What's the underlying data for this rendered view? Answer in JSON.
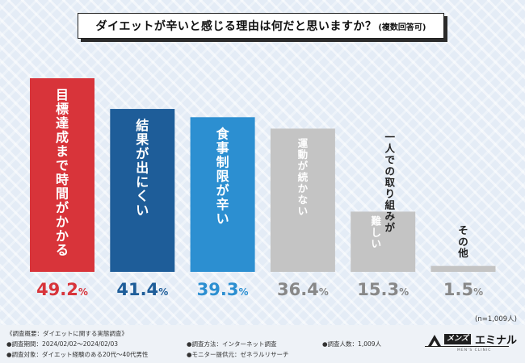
{
  "title": {
    "main": "ダイエットが辛いと感じる理由は何だと思いますか？",
    "note": "(複数回答可)"
  },
  "chart_data": {
    "type": "bar",
    "title": "ダイエットが辛いと感じる理由は何だと思いますか？(複数回答可)",
    "categories": [
      "目標達成まで時間がかかる",
      "結果が出にくい",
      "食事制限が辛い",
      "運動が続かない",
      "一人での取り組みが難しい",
      "その他"
    ],
    "values": [
      49.2,
      41.4,
      39.3,
      36.4,
      15.3,
      1.5
    ],
    "unit": "%",
    "ylim": [
      0,
      50
    ],
    "colors": [
      "#d8343a",
      "#1e5d99",
      "#2c8fd1",
      "#c4c4c4",
      "#c4c4c4",
      "#c4c4c4"
    ],
    "label_colors": [
      "#ffffff",
      "#ffffff",
      "#ffffff",
      "#ffffff",
      "#ffffff",
      "#222222"
    ],
    "value_colors": [
      "#d8343a",
      "#1e5d99",
      "#2c8fd1",
      "#888888",
      "#888888",
      "#888888"
    ],
    "bar_label_lines": [
      [
        "目標達成まで時間がかかる"
      ],
      [
        "結果が出にくい"
      ],
      [
        "食事制限が辛い"
      ],
      [
        "運動が続かない"
      ],
      [
        "一人での取り組みが",
        "難しい"
      ],
      [
        "その他"
      ]
    ],
    "legend": "none",
    "grid": false
  },
  "sample_note": "(n=1,009人)",
  "footer": {
    "overview": "《調査概要：ダイエットに関する実態調査》",
    "period": "●調査期間：2024/02/02〜2024/02/03",
    "target": "●調査対象：ダイエット経験のある20代〜40代男性",
    "method": "●調査方法：インターネット調査",
    "provider": "●モニター提供元：ゼネラルリサーチ",
    "count": "●調査人数：1,009人"
  },
  "logo": {
    "tag": "メンズ",
    "name": "エミナル",
    "sub": "MEN'S CLINIC"
  }
}
